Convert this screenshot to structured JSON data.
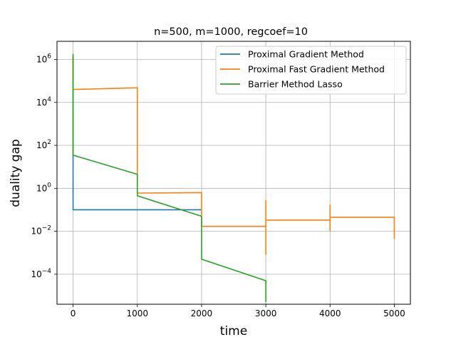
{
  "chart_data": {
    "type": "line",
    "title": "n=500, m=1000, regcoef=10",
    "xlabel": "time",
    "ylabel": "duality gap",
    "xlim": [
      -250,
      5250
    ],
    "ylim": [
      4e-06,
      7000000.0
    ],
    "yscale": "log",
    "grid": true,
    "legend_position": "top-right",
    "x_ticks": [
      {
        "value": 0,
        "label": "0"
      },
      {
        "value": 1000,
        "label": "1000"
      },
      {
        "value": 2000,
        "label": "2000"
      },
      {
        "value": 3000,
        "label": "3000"
      },
      {
        "value": 4000,
        "label": "4000"
      },
      {
        "value": 5000,
        "label": "5000"
      }
    ],
    "y_ticks": [
      {
        "value": 0.0001,
        "base": "10",
        "exp": "−4"
      },
      {
        "value": 0.01,
        "base": "10",
        "exp": "−2"
      },
      {
        "value": 1,
        "base": "10",
        "exp": "0"
      },
      {
        "value": 100.0,
        "base": "10",
        "exp": "2"
      },
      {
        "value": 10000.0,
        "base": "10",
        "exp": "4"
      },
      {
        "value": 1000000.0,
        "base": "10",
        "exp": "6"
      }
    ],
    "series": [
      {
        "name": "Proximal Gradient Method",
        "color": "#1f77b4",
        "points": [
          [
            0,
            1500000
          ],
          [
            0,
            40
          ],
          [
            0,
            0.1
          ],
          [
            2000,
            0.1
          ]
        ]
      },
      {
        "name": "Proximal Fast Gradient Method",
        "color": "#ff7f0e",
        "points": [
          [
            0,
            1500000
          ],
          [
            0,
            40000
          ],
          [
            1000,
            48000
          ],
          [
            1000,
            0.6
          ],
          [
            2000,
            0.63
          ],
          [
            2000,
            0.25
          ],
          [
            2000,
            0.017
          ],
          [
            3000,
            0.017
          ],
          [
            3000,
            0.0008
          ],
          [
            3000,
            0.28
          ],
          [
            3000,
            0.033
          ],
          [
            4000,
            0.033
          ],
          [
            4000,
            0.01
          ],
          [
            4000,
            0.18
          ],
          [
            4000,
            0.045
          ],
          [
            5000,
            0.045
          ],
          [
            5000,
            0.0045
          ]
        ]
      },
      {
        "name": "Barrier Method Lasso",
        "color": "#2ca02c",
        "points": [
          [
            0,
            1800000
          ],
          [
            0,
            35
          ],
          [
            1000,
            4.5
          ],
          [
            1000,
            0.45
          ],
          [
            2000,
            0.05
          ],
          [
            2000,
            0.0005
          ],
          [
            3000,
            5e-05
          ],
          [
            3000,
            5e-06
          ]
        ]
      }
    ]
  }
}
